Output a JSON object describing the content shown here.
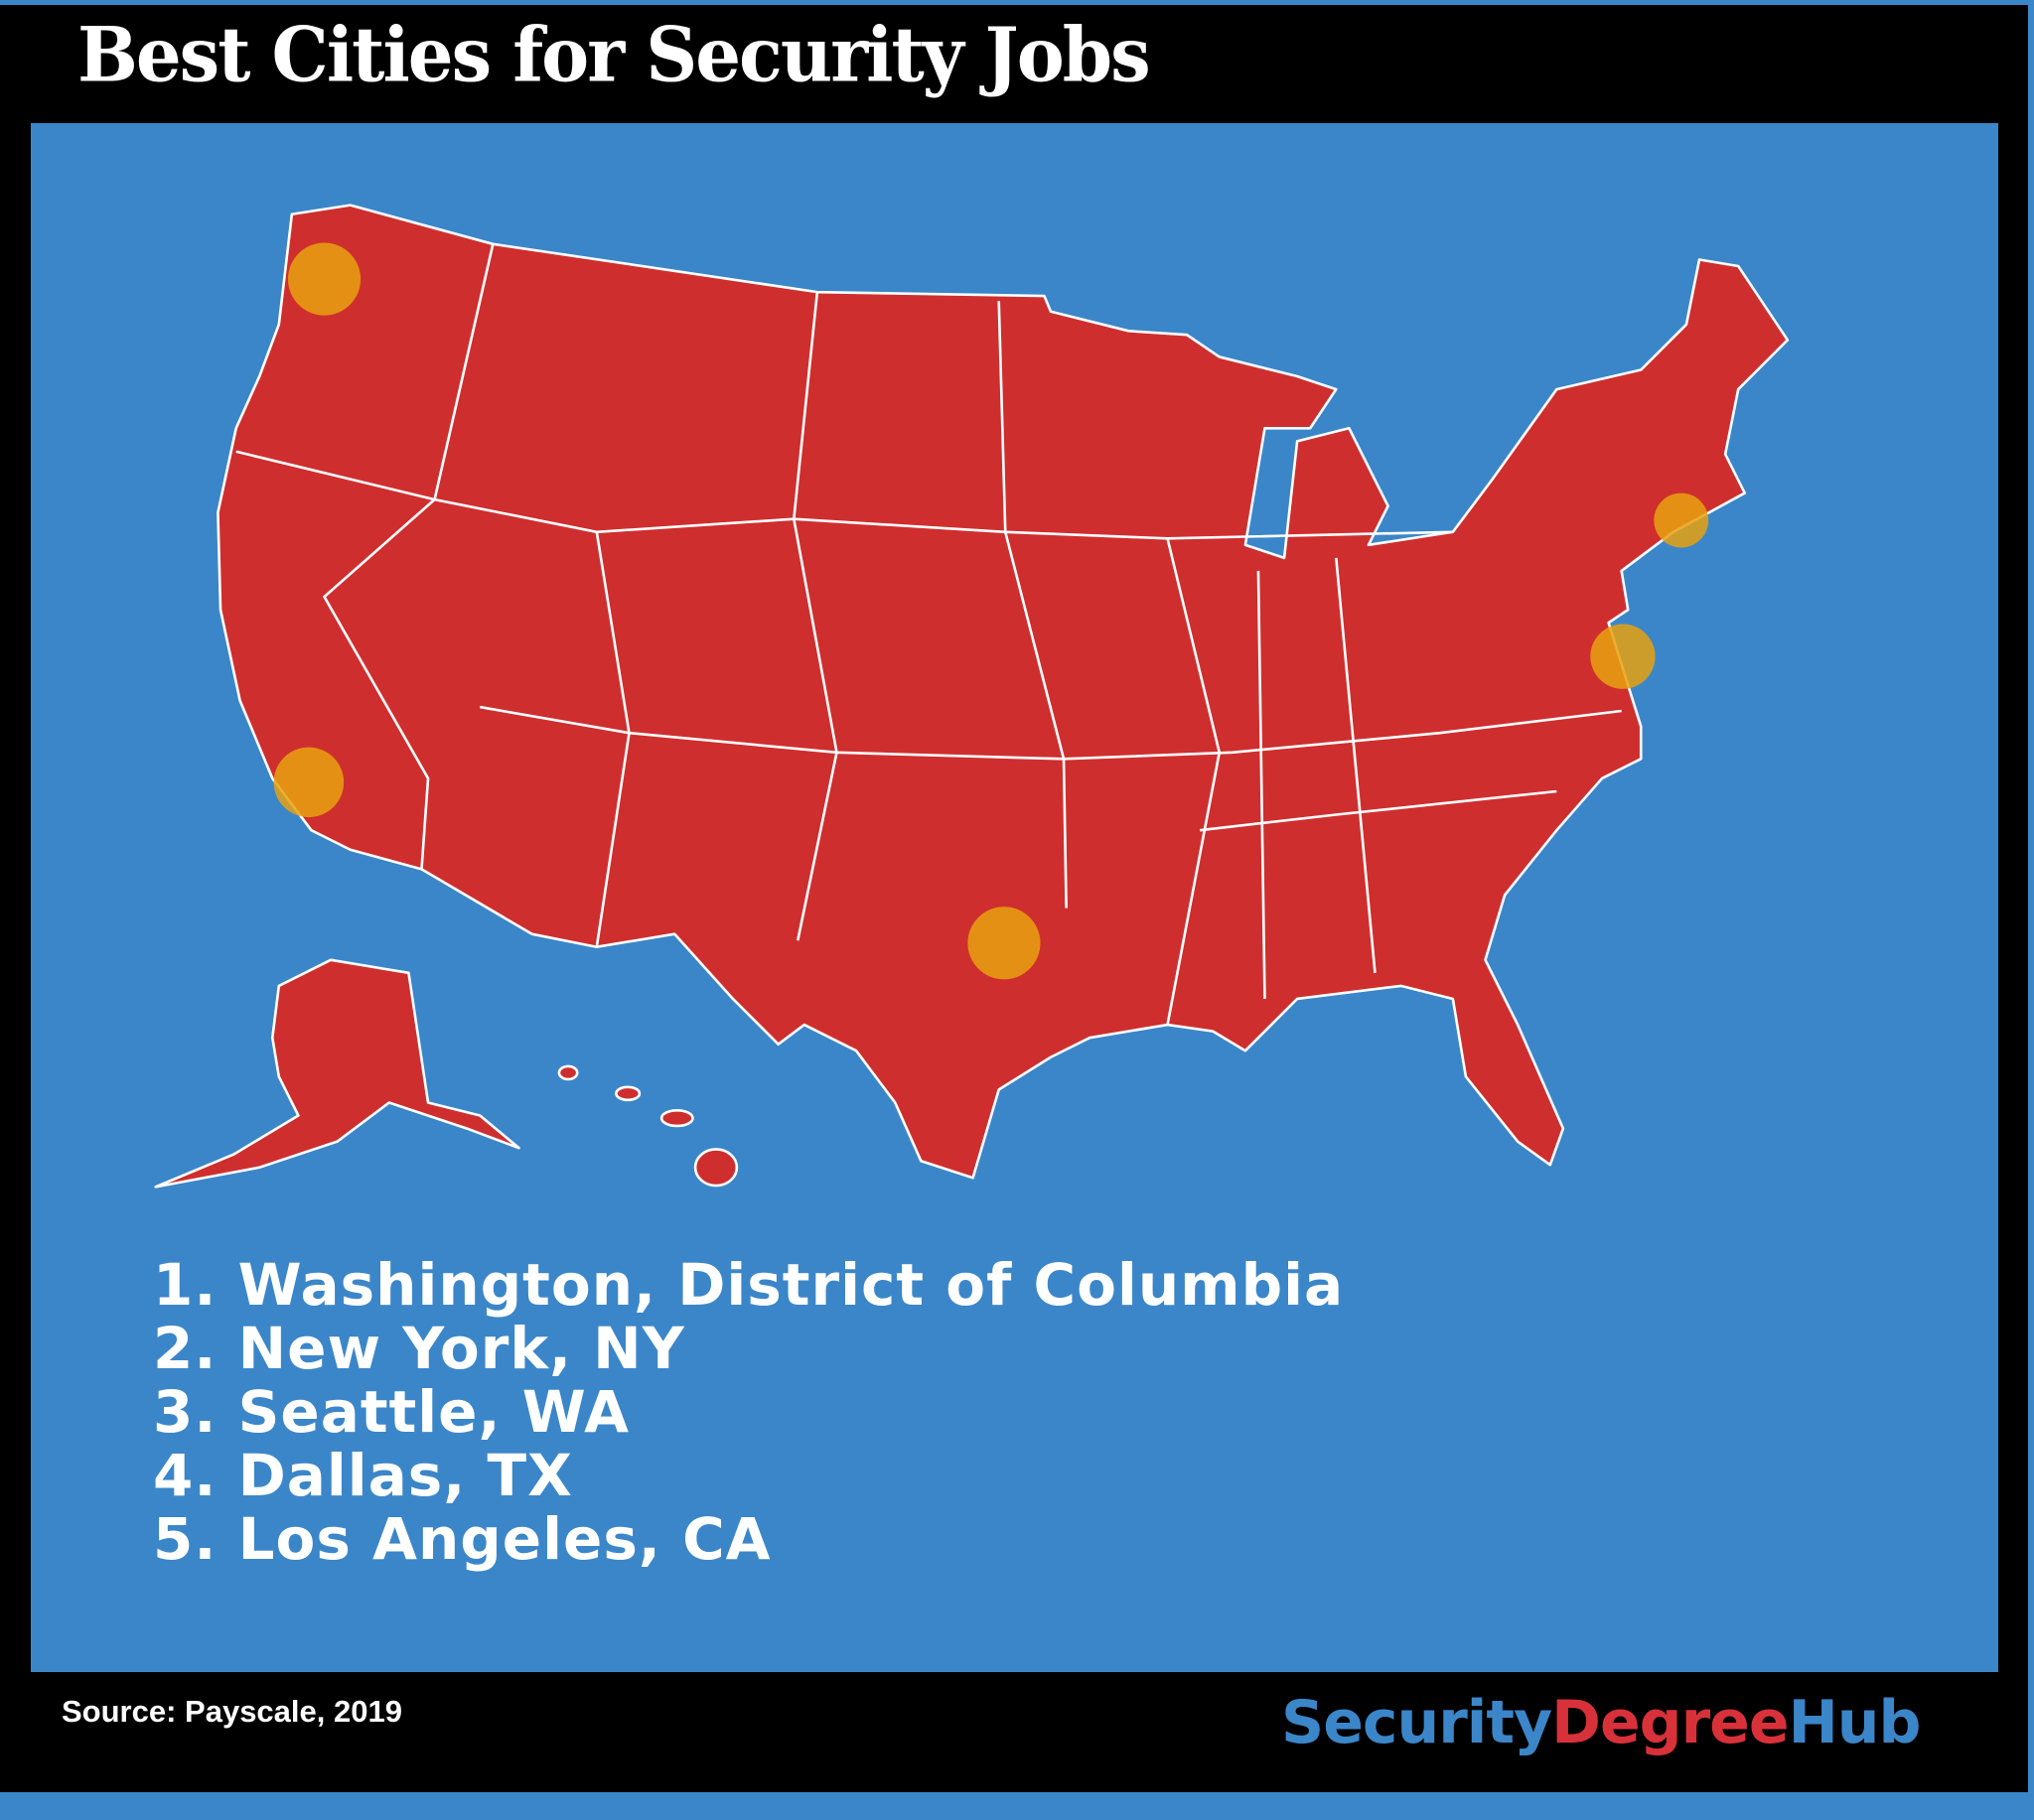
{
  "title": "Best Cities for Security Jobs",
  "map": {
    "land_color": "#cf2e2e",
    "border_color": "#ffffff",
    "water_color": "#3b86c9",
    "marker_color": "#e8a10f",
    "markers": [
      "Washington, District of Columbia",
      "New York, NY",
      "Seattle, WA",
      "Dallas, TX",
      "Los Angeles, CA"
    ]
  },
  "ranking": [
    {
      "rank": "1.",
      "city": "Washington, District of Columbia"
    },
    {
      "rank": "2.",
      "city": "New York, NY"
    },
    {
      "rank": "3.",
      "city": "Seattle, WA"
    },
    {
      "rank": "4.",
      "city": "Dallas, TX"
    },
    {
      "rank": "5.",
      "city": "Los Angeles, CA"
    }
  ],
  "footer": {
    "source": "Source: Payscale, 2019",
    "logo": {
      "part1": "Security",
      "part2": "Degree",
      "part3": "Hub",
      "color1": "#3b86c9",
      "color2": "#d8313a"
    }
  }
}
